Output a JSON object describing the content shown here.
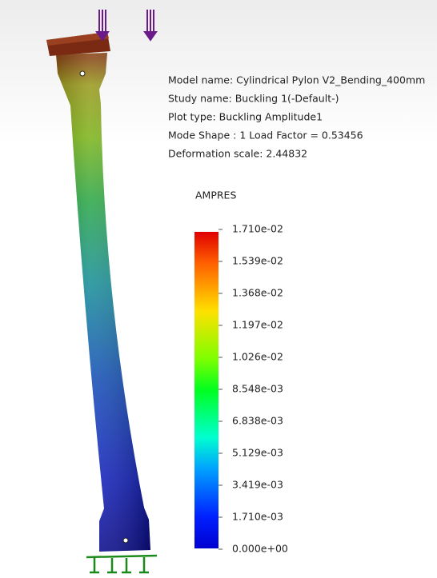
{
  "info": {
    "lines": [
      "Model name: Cylindrical Pylon V2_Bending_400mm",
      "Study name: Buckling 1(-Default-)",
      "Plot type: Buckling Amplitude1",
      "Mode Shape : 1  Load Factor = 0.53456",
      "Deformation scale: 2.44832"
    ]
  },
  "legend": {
    "title": "AMPRES",
    "labels": [
      "1.710e-02",
      "1.539e-02",
      "1.368e-02",
      "1.197e-02",
      "1.026e-02",
      "8.548e-03",
      "6.838e-03",
      "5.129e-03",
      "3.419e-03",
      "1.710e-03",
      "0.000e+00"
    ]
  }
}
